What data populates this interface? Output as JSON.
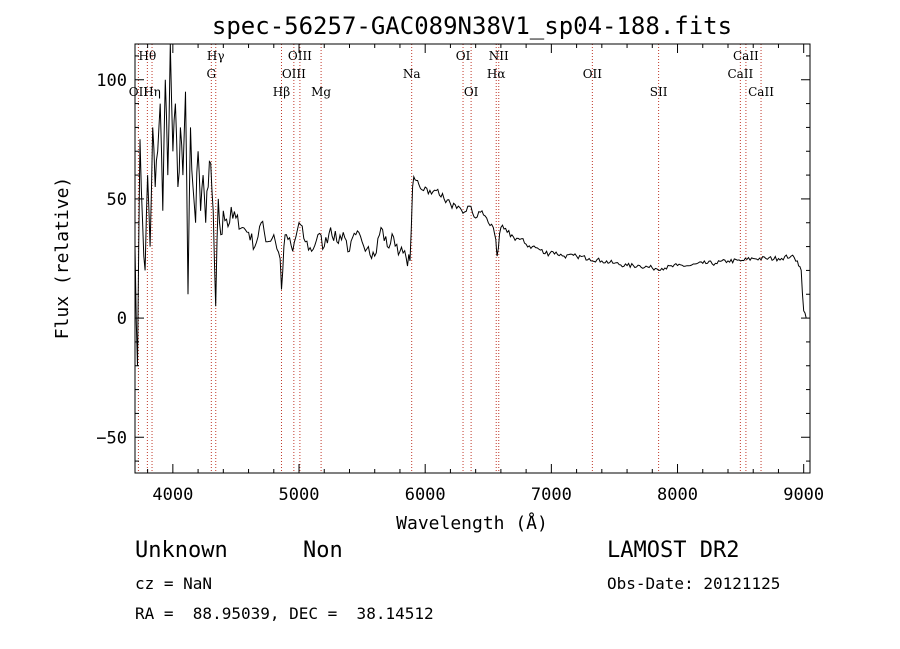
{
  "chart_data": {
    "type": "line",
    "title": "spec-56257-GAC089N38V1_sp04-188.fits",
    "xlabel": "Wavelength (Å)",
    "ylabel": "Flux (relative)",
    "xlim": [
      3700,
      9050
    ],
    "ylim": [
      -65,
      115
    ],
    "xticks": [
      4000,
      5000,
      6000,
      7000,
      8000,
      9000
    ],
    "yticks": [
      -50,
      0,
      50,
      100
    ],
    "grid": false,
    "series": [
      {
        "color": "#000000",
        "x": [
          3700,
          3720,
          3740,
          3760,
          3780,
          3800,
          3820,
          3840,
          3860,
          3880,
          3900,
          3920,
          3940,
          3960,
          3980,
          4000,
          4020,
          4040,
          4060,
          4080,
          4100,
          4120,
          4140,
          4160,
          4180,
          4200,
          4220,
          4240,
          4260,
          4280,
          4300,
          4320,
          4340,
          4360,
          4380,
          4400,
          4450,
          4500,
          4550,
          4600,
          4650,
          4700,
          4750,
          4800,
          4850,
          4861,
          4880,
          4900,
          4950,
          5000,
          5050,
          5100,
          5150,
          5200,
          5250,
          5300,
          5350,
          5400,
          5450,
          5500,
          5550,
          5600,
          5650,
          5700,
          5750,
          5800,
          5850,
          5880,
          5900,
          5920,
          5950,
          6000,
          6050,
          6100,
          6150,
          6200,
          6250,
          6300,
          6350,
          6400,
          6450,
          6500,
          6540,
          6560,
          6570,
          6600,
          6650,
          6700,
          6750,
          6800,
          6850,
          6900,
          6950,
          7000,
          7100,
          7200,
          7300,
          7400,
          7500,
          7600,
          7700,
          7800,
          7900,
          8000,
          8100,
          8200,
          8300,
          8400,
          8500,
          8600,
          8700,
          8800,
          8900,
          8950,
          8980,
          9000,
          9020
        ],
        "y": [
          30,
          -20,
          75,
          40,
          20,
          60,
          30,
          80,
          55,
          70,
          90,
          45,
          100,
          60,
          115,
          70,
          90,
          55,
          80,
          60,
          95,
          10,
          80,
          55,
          40,
          70,
          45,
          60,
          40,
          55,
          65,
          45,
          5,
          50,
          35,
          45,
          40,
          42,
          38,
          36,
          30,
          40,
          32,
          35,
          25,
          12,
          30,
          35,
          28,
          40,
          32,
          28,
          35,
          30,
          38,
          32,
          36,
          28,
          35,
          32,
          30,
          26,
          38,
          30,
          34,
          28,
          25,
          24,
          55,
          58,
          56,
          55,
          52,
          54,
          50,
          48,
          46,
          44,
          47,
          42,
          45,
          40,
          38,
          33,
          26,
          38,
          36,
          34,
          33,
          31,
          30,
          29,
          27,
          28,
          26,
          26,
          25,
          24,
          23,
          22,
          22,
          21,
          21,
          22,
          22,
          23,
          23,
          24,
          24,
          25,
          25,
          25,
          26,
          24,
          20,
          3,
          0
        ]
      }
    ],
    "lines": [
      {
        "label": "Hθ",
        "x": 3798,
        "row": 1
      },
      {
        "label": "OII",
        "x": 3727,
        "row": 3
      },
      {
        "label": "Hη",
        "x": 3835,
        "row": 3
      },
      {
        "label": "Hγ",
        "x": 4340,
        "row": 1
      },
      {
        "label": "G",
        "x": 4305,
        "row": 2
      },
      {
        "label": "Hβ",
        "x": 4861,
        "row": 3
      },
      {
        "label": "OIII",
        "x": 5007,
        "row": 1
      },
      {
        "label": "OIII",
        "x": 4959,
        "row": 2
      },
      {
        "label": "Mg",
        "x": 5175,
        "row": 3
      },
      {
        "label": "Na",
        "x": 5893,
        "row": 2
      },
      {
        "label": "OI",
        "x": 6300,
        "row": 1
      },
      {
        "label": "OI",
        "x": 6364,
        "row": 3
      },
      {
        "label": "NII",
        "x": 6583,
        "row": 1
      },
      {
        "label": "Hα",
        "x": 6563,
        "row": 2
      },
      {
        "label": "OII",
        "x": 7325,
        "row": 2
      },
      {
        "label": "SII",
        "x": 7850,
        "row": 3
      },
      {
        "label": "CaII",
        "x": 8542,
        "row": 1
      },
      {
        "label": "CaII",
        "x": 8498,
        "row": 2
      },
      {
        "label": "CaII",
        "x": 8662,
        "row": 3
      }
    ]
  },
  "info": {
    "object_class": "Unknown",
    "object_subclass": "Non",
    "survey": "LAMOST DR2",
    "cz": "cz = NaN",
    "obs_date": "Obs-Date: 20121125",
    "coords": "RA =  88.95039, DEC =  38.14512"
  }
}
